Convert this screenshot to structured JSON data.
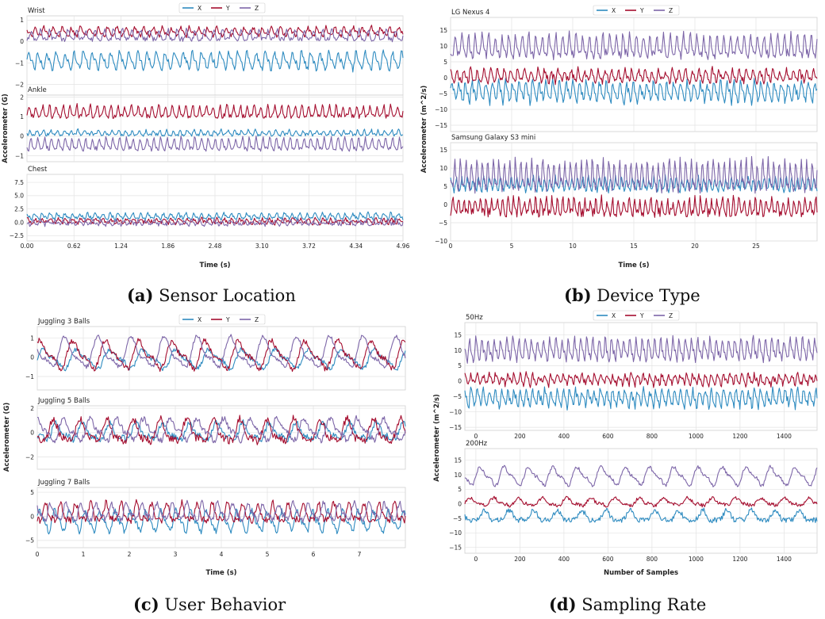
{
  "colors": {
    "x": "#2e8bc0",
    "y": "#a50e2f",
    "z": "#7d66a8",
    "grid": "#e3e3e3",
    "frame": "#cfcfcf"
  },
  "legend": [
    "X",
    "Y",
    "Z"
  ],
  "chart_data": [
    {
      "id": "a",
      "type": "line",
      "caption_letter": "(a)",
      "caption": "Sensor Location",
      "xlabel": "Time (s)",
      "ylabel": "Accelerometer (G)",
      "xlim": [
        0,
        4.96
      ],
      "xticks": [
        "0.00",
        "0.62",
        "1.24",
        "1.86",
        "2.48",
        "3.10",
        "3.72",
        "4.34",
        "4.96"
      ],
      "xtickvals": [
        0,
        0.62,
        1.24,
        1.86,
        2.48,
        3.1,
        3.72,
        4.34,
        4.96
      ],
      "xticks_on_each_panel": false,
      "panels": [
        {
          "title": "Wrist",
          "ylim": [
            -2.5,
            1.2
          ],
          "yticks": [
            1,
            0,
            -1,
            -2
          ],
          "series": [
            {
              "name": "X",
              "mean": -0.9,
              "amp": 0.45,
              "period": 0.12,
              "noise": 0.12
            },
            {
              "name": "Y",
              "mean": 0.45,
              "amp": 0.22,
              "period": 0.12,
              "noise": 0.1
            },
            {
              "name": "Z",
              "mean": 0.25,
              "amp": 0.28,
              "period": 0.12,
              "noise": 0.1
            }
          ]
        },
        {
          "title": "Ankle",
          "ylim": [
            -1.3,
            2.1
          ],
          "yticks": [
            2,
            1,
            0,
            -1
          ],
          "series": [
            {
              "name": "X",
              "mean": 0.15,
              "amp": 0.15,
              "period": 0.09,
              "noise": 0.08
            },
            {
              "name": "Y",
              "mean": 1.2,
              "amp": 0.35,
              "period": 0.09,
              "noise": 0.12
            },
            {
              "name": "Z",
              "mean": -0.45,
              "amp": 0.35,
              "period": 0.09,
              "noise": 0.1
            }
          ]
        },
        {
          "title": "Chest",
          "ylim": [
            -3.5,
            9
          ],
          "yticks": [
            7.5,
            5,
            2.5,
            0,
            -2.5
          ],
          "ytick_labels": [
            "7.5",
            "5.0",
            "2.5",
            "0.0",
            "−2.5"
          ],
          "series": [
            {
              "name": "X",
              "mean": 1.1,
              "amp": 0.6,
              "period": 0.1,
              "noise": 0.3
            },
            {
              "name": "Y",
              "mean": 0.2,
              "amp": 0.5,
              "period": 0.1,
              "noise": 0.35
            },
            {
              "name": "Z",
              "mean": -0.1,
              "amp": 0.5,
              "period": 0.1,
              "noise": 0.35
            }
          ]
        }
      ]
    },
    {
      "id": "b",
      "type": "line",
      "caption_letter": "(b)",
      "caption": "Device Type",
      "xlabel": "Time (s)",
      "ylabel": "Accelerometer (m^2/s)",
      "xlim": [
        0,
        30
      ],
      "xticks": [
        "0",
        "5",
        "10",
        "15",
        "20",
        "25"
      ],
      "xtickvals": [
        0,
        5,
        10,
        15,
        20,
        25
      ],
      "xticks_on_each_panel": false,
      "panels": [
        {
          "title": "LG Nexus 4",
          "ylim": [
            -17,
            19
          ],
          "yticks": [
            15,
            10,
            5,
            0,
            -5,
            -10,
            -15
          ],
          "series": [
            {
              "name": "X",
              "mean": -4.5,
              "amp": 3.5,
              "period": 0.55,
              "noise": 1.2
            },
            {
              "name": "Y",
              "mean": 0.5,
              "amp": 2.2,
              "period": 0.55,
              "noise": 1.0
            },
            {
              "name": "Z",
              "mean": 9.5,
              "amp": 4,
              "period": 0.55,
              "noise": 1.2
            }
          ]
        },
        {
          "title": "Samsung Galaxy S3 mini",
          "ylim": [
            -10,
            17
          ],
          "yticks": [
            15,
            10,
            5,
            0,
            -5,
            -10
          ],
          "series": [
            {
              "name": "X",
              "mean": 5.5,
              "amp": 2,
              "period": 0.45,
              "noise": 0.8
            },
            {
              "name": "Y",
              "mean": -1,
              "amp": 2.5,
              "period": 0.45,
              "noise": 1.2
            },
            {
              "name": "Z",
              "mean": 7.5,
              "amp": 4.5,
              "period": 0.45,
              "noise": 1.2
            }
          ]
        }
      ]
    },
    {
      "id": "c",
      "type": "line",
      "caption_letter": "(c)",
      "caption": "User Behavior",
      "xlabel": "Time (s)",
      "ylabel": "Accelerometer (G)",
      "xlim": [
        0,
        8
      ],
      "xticks": [
        "0",
        "1",
        "2",
        "3",
        "4",
        "5",
        "6",
        "7"
      ],
      "xtickvals": [
        0,
        1,
        2,
        3,
        4,
        5,
        6,
        7
      ],
      "xticks_on_each_panel": false,
      "panels": [
        {
          "title": "Juggling 3 Balls",
          "ylim": [
            -1.7,
            1.6
          ],
          "yticks": [
            1,
            0,
            -1
          ],
          "series": [
            {
              "name": "X",
              "mean": -0.1,
              "amp": 0.55,
              "period": 0.72,
              "noise": 0.12
            },
            {
              "name": "Y",
              "mean": 0.1,
              "amp": 0.8,
              "period": 0.72,
              "noise": 0.15
            },
            {
              "name": "Z",
              "mean": 0.2,
              "amp": 0.9,
              "period": 0.72,
              "noise": 0.1
            }
          ]
        },
        {
          "title": "Juggling 5 Balls",
          "ylim": [
            -3,
            2.2
          ],
          "yticks": [
            2,
            0,
            -2
          ],
          "series": [
            {
              "name": "X",
              "mean": 0,
              "amp": 0.8,
              "period": 0.58,
              "noise": 0.25
            },
            {
              "name": "Y",
              "mean": 0,
              "amp": 1.1,
              "period": 0.58,
              "noise": 0.3
            },
            {
              "name": "Z",
              "mean": 0.2,
              "amp": 1.0,
              "period": 0.58,
              "noise": 0.25
            }
          ]
        },
        {
          "title": "Juggling 7 Balls",
          "ylim": [
            -6.5,
            6
          ],
          "yticks": [
            5,
            0,
            -5
          ],
          "series": [
            {
              "name": "X",
              "mean": -1,
              "amp": 2.4,
              "period": 0.33,
              "noise": 0.6
            },
            {
              "name": "Y",
              "mean": 0.5,
              "amp": 2.2,
              "period": 0.33,
              "noise": 0.7
            },
            {
              "name": "Z",
              "mean": 0.8,
              "amp": 2.0,
              "period": 0.33,
              "noise": 0.6
            }
          ]
        }
      ]
    },
    {
      "id": "d",
      "type": "line",
      "caption_letter": "(d)",
      "caption": "Sampling Rate",
      "xlabel": "Number of Samples",
      "ylabel": "Accelerometer (m^2/s)",
      "xlim": [
        -50,
        1550
      ],
      "xticks": [
        "0",
        "200",
        "400",
        "600",
        "800",
        "1000",
        "1200",
        "1400"
      ],
      "xtickvals": [
        0,
        200,
        400,
        600,
        800,
        1000,
        1200,
        1400
      ],
      "xticks_on_each_panel": true,
      "panels": [
        {
          "title": "50Hz",
          "ylim": [
            -16,
            19
          ],
          "yticks": [
            15,
            10,
            5,
            0,
            -5,
            -10,
            -15
          ],
          "series": [
            {
              "name": "X",
              "mean": -5.5,
              "amp": 3,
              "period": 28,
              "noise": 1.2
            },
            {
              "name": "Y",
              "mean": 0.5,
              "amp": 1.8,
              "period": 28,
              "noise": 1.0
            },
            {
              "name": "Z",
              "mean": 10,
              "amp": 4,
              "period": 28,
              "noise": 1.1
            }
          ]
        },
        {
          "title": "200Hz",
          "ylim": [
            -17,
            19
          ],
          "yticks": [
            15,
            10,
            5,
            0,
            -5,
            -10,
            -15
          ],
          "series": [
            {
              "name": "X",
              "mean": -4.5,
              "amp": 2.2,
              "period": 110,
              "noise": 0.9
            },
            {
              "name": "Y",
              "mean": 0.5,
              "amp": 1.5,
              "period": 110,
              "noise": 0.6
            },
            {
              "name": "Z",
              "mean": 9.5,
              "amp": 3.5,
              "period": 110,
              "noise": 0.6
            }
          ]
        }
      ]
    }
  ]
}
